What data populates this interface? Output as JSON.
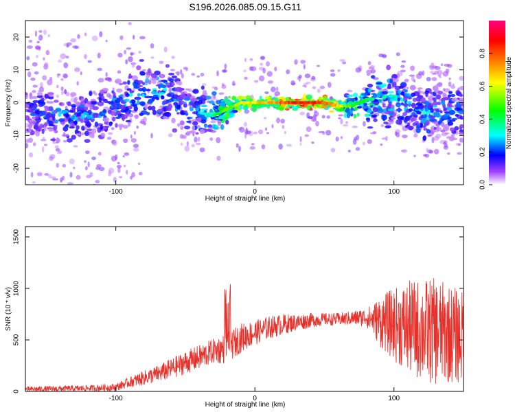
{
  "figure_title": "S196.2026.085.09.15.G11",
  "chart_data": [
    {
      "type": "heatmap",
      "xlabel": "Height of straight line (km)",
      "ylabel": "Frequency (Hz)",
      "xlim": [
        -165,
        150
      ],
      "ylim": [
        -25,
        25
      ],
      "xticks": [
        -100,
        0,
        100
      ],
      "yticks": [
        -20,
        -10,
        0,
        10,
        20
      ],
      "colorbar": {
        "label": "Normalized spectral amplitude",
        "range": [
          0,
          1
        ],
        "ticks": [
          0.0,
          0.2,
          0.4,
          0.6,
          0.8
        ],
        "colors": [
          "#ffffff",
          "#a040ff",
          "#0000ff",
          "#00ffff",
          "#00ff00",
          "#ffff00",
          "#ff8000",
          "#ff0000",
          "#ff0080"
        ]
      },
      "ridge": [
        {
          "x": -160,
          "f": -3,
          "a": 0.25
        },
        {
          "x": -140,
          "f": -4,
          "a": 0.3
        },
        {
          "x": -120,
          "f": -4,
          "a": 0.3
        },
        {
          "x": -100,
          "f": -1,
          "a": 0.3
        },
        {
          "x": -85,
          "f": 3,
          "a": 0.35
        },
        {
          "x": -70,
          "f": 4,
          "a": 0.35
        },
        {
          "x": -55,
          "f": 0,
          "a": 0.3
        },
        {
          "x": -40,
          "f": -3,
          "a": 0.3
        },
        {
          "x": -30,
          "f": -4,
          "a": 0.4
        },
        {
          "x": -20,
          "f": -2,
          "a": 0.55
        },
        {
          "x": -10,
          "f": 0,
          "a": 0.65
        },
        {
          "x": 0,
          "f": 0,
          "a": 0.7
        },
        {
          "x": 10,
          "f": 0,
          "a": 0.75
        },
        {
          "x": 20,
          "f": 0,
          "a": 0.85
        },
        {
          "x": 30,
          "f": 0,
          "a": 0.95
        },
        {
          "x": 40,
          "f": 0,
          "a": 0.95
        },
        {
          "x": 50,
          "f": 0,
          "a": 0.85
        },
        {
          "x": 60,
          "f": -1,
          "a": 0.7
        },
        {
          "x": 70,
          "f": -1,
          "a": 0.5
        },
        {
          "x": 80,
          "f": 1,
          "a": 0.45
        },
        {
          "x": 90,
          "f": 1,
          "a": 0.4
        },
        {
          "x": 100,
          "f": 2,
          "a": 0.35
        },
        {
          "x": 110,
          "f": -2,
          "a": 0.35
        },
        {
          "x": 120,
          "f": -3,
          "a": 0.35
        },
        {
          "x": 135,
          "f": -2,
          "a": 0.3
        },
        {
          "x": 148,
          "f": -3,
          "a": 0.3
        }
      ]
    },
    {
      "type": "line",
      "xlabel": "Height of straight line (km)",
      "ylabel": "SNR (10 * v/v)",
      "xlim": [
        -165,
        150
      ],
      "ylim": [
        0,
        1600
      ],
      "xticks": [
        -100,
        0,
        100
      ],
      "yticks": [
        0,
        500,
        1000,
        1500
      ],
      "color": "#e8302a",
      "envelope_x": [
        -165,
        -140,
        -120,
        -100,
        -90,
        -80,
        -70,
        -60,
        -50,
        -40,
        -30,
        -20,
        -10,
        0,
        10,
        20,
        30,
        40,
        50,
        60,
        70,
        80,
        85,
        90,
        100,
        110,
        120,
        130,
        140,
        150
      ],
      "envelope_mean": [
        20,
        25,
        30,
        40,
        90,
        130,
        170,
        220,
        280,
        330,
        390,
        420,
        520,
        570,
        620,
        650,
        670,
        690,
        700,
        700,
        710,
        720,
        700,
        680,
        650,
        620,
        600,
        580,
        560,
        520
      ],
      "envelope_spread": [
        25,
        30,
        30,
        35,
        50,
        70,
        80,
        100,
        110,
        120,
        120,
        150,
        140,
        120,
        110,
        100,
        80,
        70,
        60,
        60,
        70,
        90,
        150,
        250,
        350,
        450,
        500,
        520,
        480,
        450
      ]
    }
  ]
}
